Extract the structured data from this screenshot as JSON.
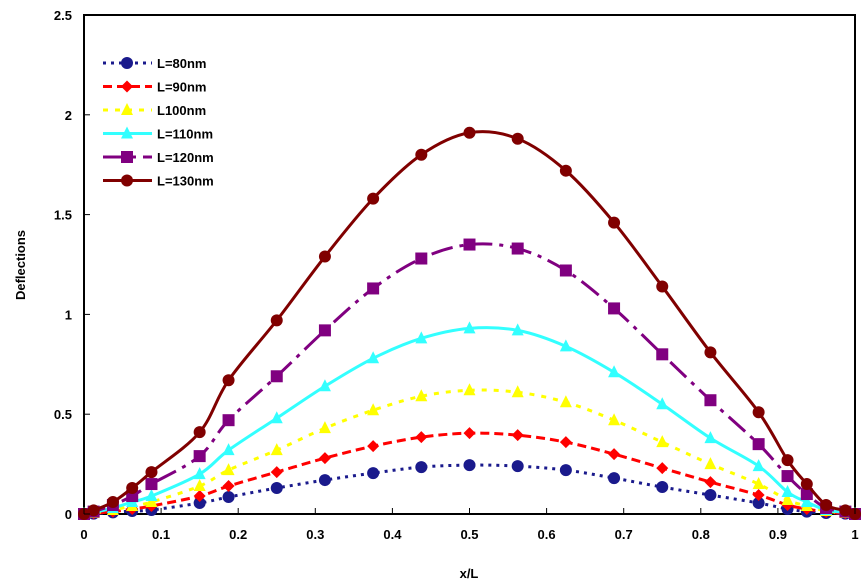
{
  "chart_data": {
    "type": "line",
    "xlabel": "x/L",
    "ylabel": "Deflections",
    "xlim": [
      0,
      1
    ],
    "ylim": [
      0,
      2.5
    ],
    "x_ticks": [
      "0",
      "0.1",
      "0.2",
      "0.3",
      "0.4",
      "0.5",
      "0.6",
      "0.7",
      "0.8",
      "0.9",
      "1"
    ],
    "y_ticks": [
      "0",
      "0.5",
      "1",
      "1.5",
      "2",
      "2.5"
    ],
    "grid": false,
    "legend_position": "top-left",
    "x": [
      0.0,
      0.0125,
      0.0375,
      0.0625,
      0.0875,
      0.15,
      0.1875,
      0.25,
      0.3125,
      0.375,
      0.4375,
      0.5,
      0.5625,
      0.625,
      0.6875,
      0.75,
      0.8125,
      0.875,
      0.9125,
      0.9375,
      0.9625,
      0.9875,
      1.0
    ],
    "series": [
      {
        "name": "L=80nm",
        "color": "#1a1a8c",
        "marker": "circle",
        "dash": "3,5",
        "values": [
          0.0,
          0.002,
          0.008,
          0.015,
          0.02,
          0.055,
          0.085,
          0.13,
          0.17,
          0.205,
          0.235,
          0.245,
          0.24,
          0.22,
          0.18,
          0.135,
          0.095,
          0.055,
          0.025,
          0.012,
          0.005,
          0.002,
          0.0
        ]
      },
      {
        "name": "L=90nm",
        "color": "#ff0000",
        "marker": "diamond",
        "dash": "9,5",
        "values": [
          0.0,
          0.003,
          0.012,
          0.025,
          0.04,
          0.09,
          0.14,
          0.21,
          0.28,
          0.34,
          0.385,
          0.405,
          0.395,
          0.36,
          0.3,
          0.23,
          0.16,
          0.095,
          0.045,
          0.025,
          0.01,
          0.003,
          0.0
        ]
      },
      {
        "name": "L100nm",
        "color": "#ffff00",
        "marker": "triangle",
        "dash": "5,7",
        "values": [
          0.0,
          0.005,
          0.02,
          0.04,
          0.06,
          0.14,
          0.22,
          0.32,
          0.43,
          0.52,
          0.59,
          0.62,
          0.61,
          0.56,
          0.47,
          0.36,
          0.25,
          0.15,
          0.07,
          0.04,
          0.015,
          0.005,
          0.0
        ]
      },
      {
        "name": "L=110nm",
        "color": "#33ffff",
        "marker": "triangle",
        "dash": "",
        "values": [
          0.0,
          0.008,
          0.03,
          0.06,
          0.09,
          0.2,
          0.32,
          0.48,
          0.64,
          0.78,
          0.88,
          0.93,
          0.92,
          0.84,
          0.71,
          0.55,
          0.38,
          0.24,
          0.11,
          0.06,
          0.02,
          0.008,
          0.0
        ]
      },
      {
        "name": "L=120nm",
        "color": "#800080",
        "marker": "square",
        "dash": "22,7,4,7",
        "values": [
          0.0,
          0.012,
          0.045,
          0.09,
          0.15,
          0.29,
          0.47,
          0.69,
          0.92,
          1.13,
          1.28,
          1.35,
          1.33,
          1.22,
          1.03,
          0.8,
          0.57,
          0.35,
          0.19,
          0.1,
          0.03,
          0.012,
          0.0
        ]
      },
      {
        "name": "L=130nm",
        "color": "#800000",
        "marker": "circle",
        "dash": "",
        "values": [
          0.0,
          0.018,
          0.06,
          0.13,
          0.21,
          0.41,
          0.67,
          0.97,
          1.29,
          1.58,
          1.8,
          1.91,
          1.88,
          1.72,
          1.46,
          1.14,
          0.81,
          0.51,
          0.27,
          0.15,
          0.045,
          0.018,
          0.0
        ]
      }
    ]
  }
}
